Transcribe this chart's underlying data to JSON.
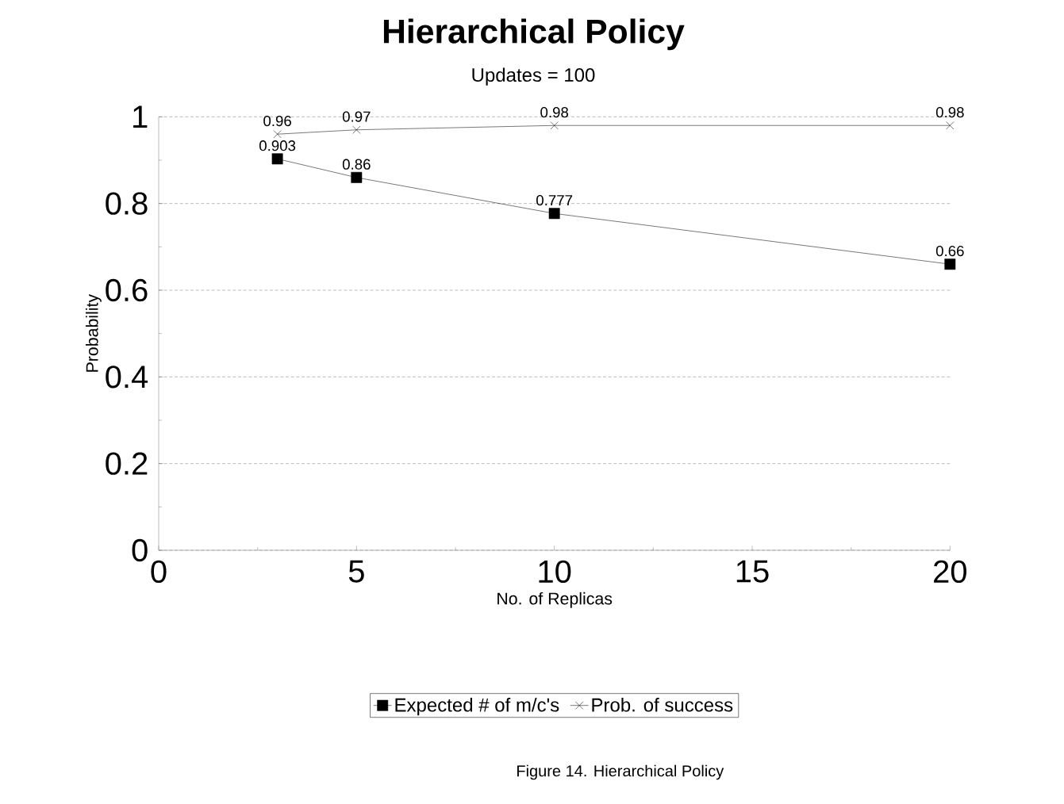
{
  "chart_data": {
    "type": "line",
    "title": "Hierarchical Policy",
    "subtitle": "Updates = 100",
    "xlabel": "No. of Replicas",
    "ylabel": "Probability",
    "x": [
      3,
      5,
      10,
      20
    ],
    "series": [
      {
        "name": "Expected # of m/c's",
        "color": "#000000",
        "marker": "square",
        "values": [
          0.903,
          0.86,
          0.777,
          0.66
        ]
      },
      {
        "name": "Prob. of success",
        "color": "#000000",
        "marker": "cross",
        "values": [
          0.96,
          0.97,
          0.98,
          0.98
        ]
      }
    ],
    "xlim": [
      0,
      20
    ],
    "xticks": [
      0,
      5,
      10,
      15,
      20
    ],
    "ylim": [
      0,
      1
    ],
    "yticks": [
      0,
      0.2,
      0.4,
      0.6,
      0.8,
      1
    ],
    "grid": "y",
    "legend": "bottom",
    "line_style": "solid",
    "data_labels": true,
    "annotations": [
      "Figure 14.  Hierarchical Policy"
    ]
  }
}
